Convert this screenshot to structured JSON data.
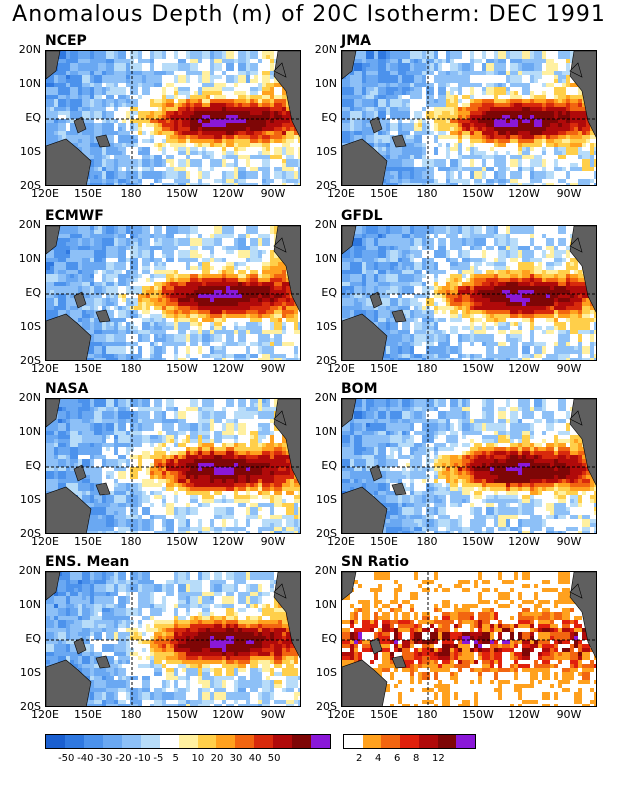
{
  "title": "Anomalous Depth (m) of 20C Isotherm: DEC 1991",
  "panels": [
    {
      "name": "NCEP",
      "kind": "anom"
    },
    {
      "name": "JMA",
      "kind": "anom"
    },
    {
      "name": "ECMWF",
      "kind": "anom"
    },
    {
      "name": "GFDL",
      "kind": "anom"
    },
    {
      "name": "NASA",
      "kind": "anom"
    },
    {
      "name": "BOM",
      "kind": "anom"
    },
    {
      "name": "ENS. Mean",
      "kind": "anom"
    },
    {
      "name": "SN Ratio",
      "kind": "sn"
    }
  ],
  "lat_labels": [
    "20N",
    "10N",
    "EQ",
    "10S",
    "20S"
  ],
  "lon_labels": [
    "120E",
    "150E",
    "180",
    "150W",
    "120W",
    "90W"
  ],
  "anom_colorbar": {
    "colors": [
      "#1a5fd0",
      "#2f78e0",
      "#4c92ec",
      "#6aa8f2",
      "#8dc0f7",
      "#b7dcf9",
      "#ffffff",
      "#fff0a0",
      "#ffcf4a",
      "#ffa11e",
      "#f26510",
      "#d82a0c",
      "#b00a0a",
      "#7e0606",
      "#8a18d8"
    ],
    "labels": [
      "-50",
      "-40",
      "-30",
      "-20",
      "-10",
      "-5",
      "5",
      "10",
      "20",
      "30",
      "40",
      "50"
    ]
  },
  "sn_colorbar": {
    "colors": [
      "#ffffff",
      "#ffa11e",
      "#f26510",
      "#e0200c",
      "#b00a0a",
      "#7e0606",
      "#8a18d8"
    ],
    "labels": [
      "2",
      "4",
      "6",
      "8",
      "12"
    ]
  },
  "colors": {
    "land": "#5f5f5f"
  }
}
